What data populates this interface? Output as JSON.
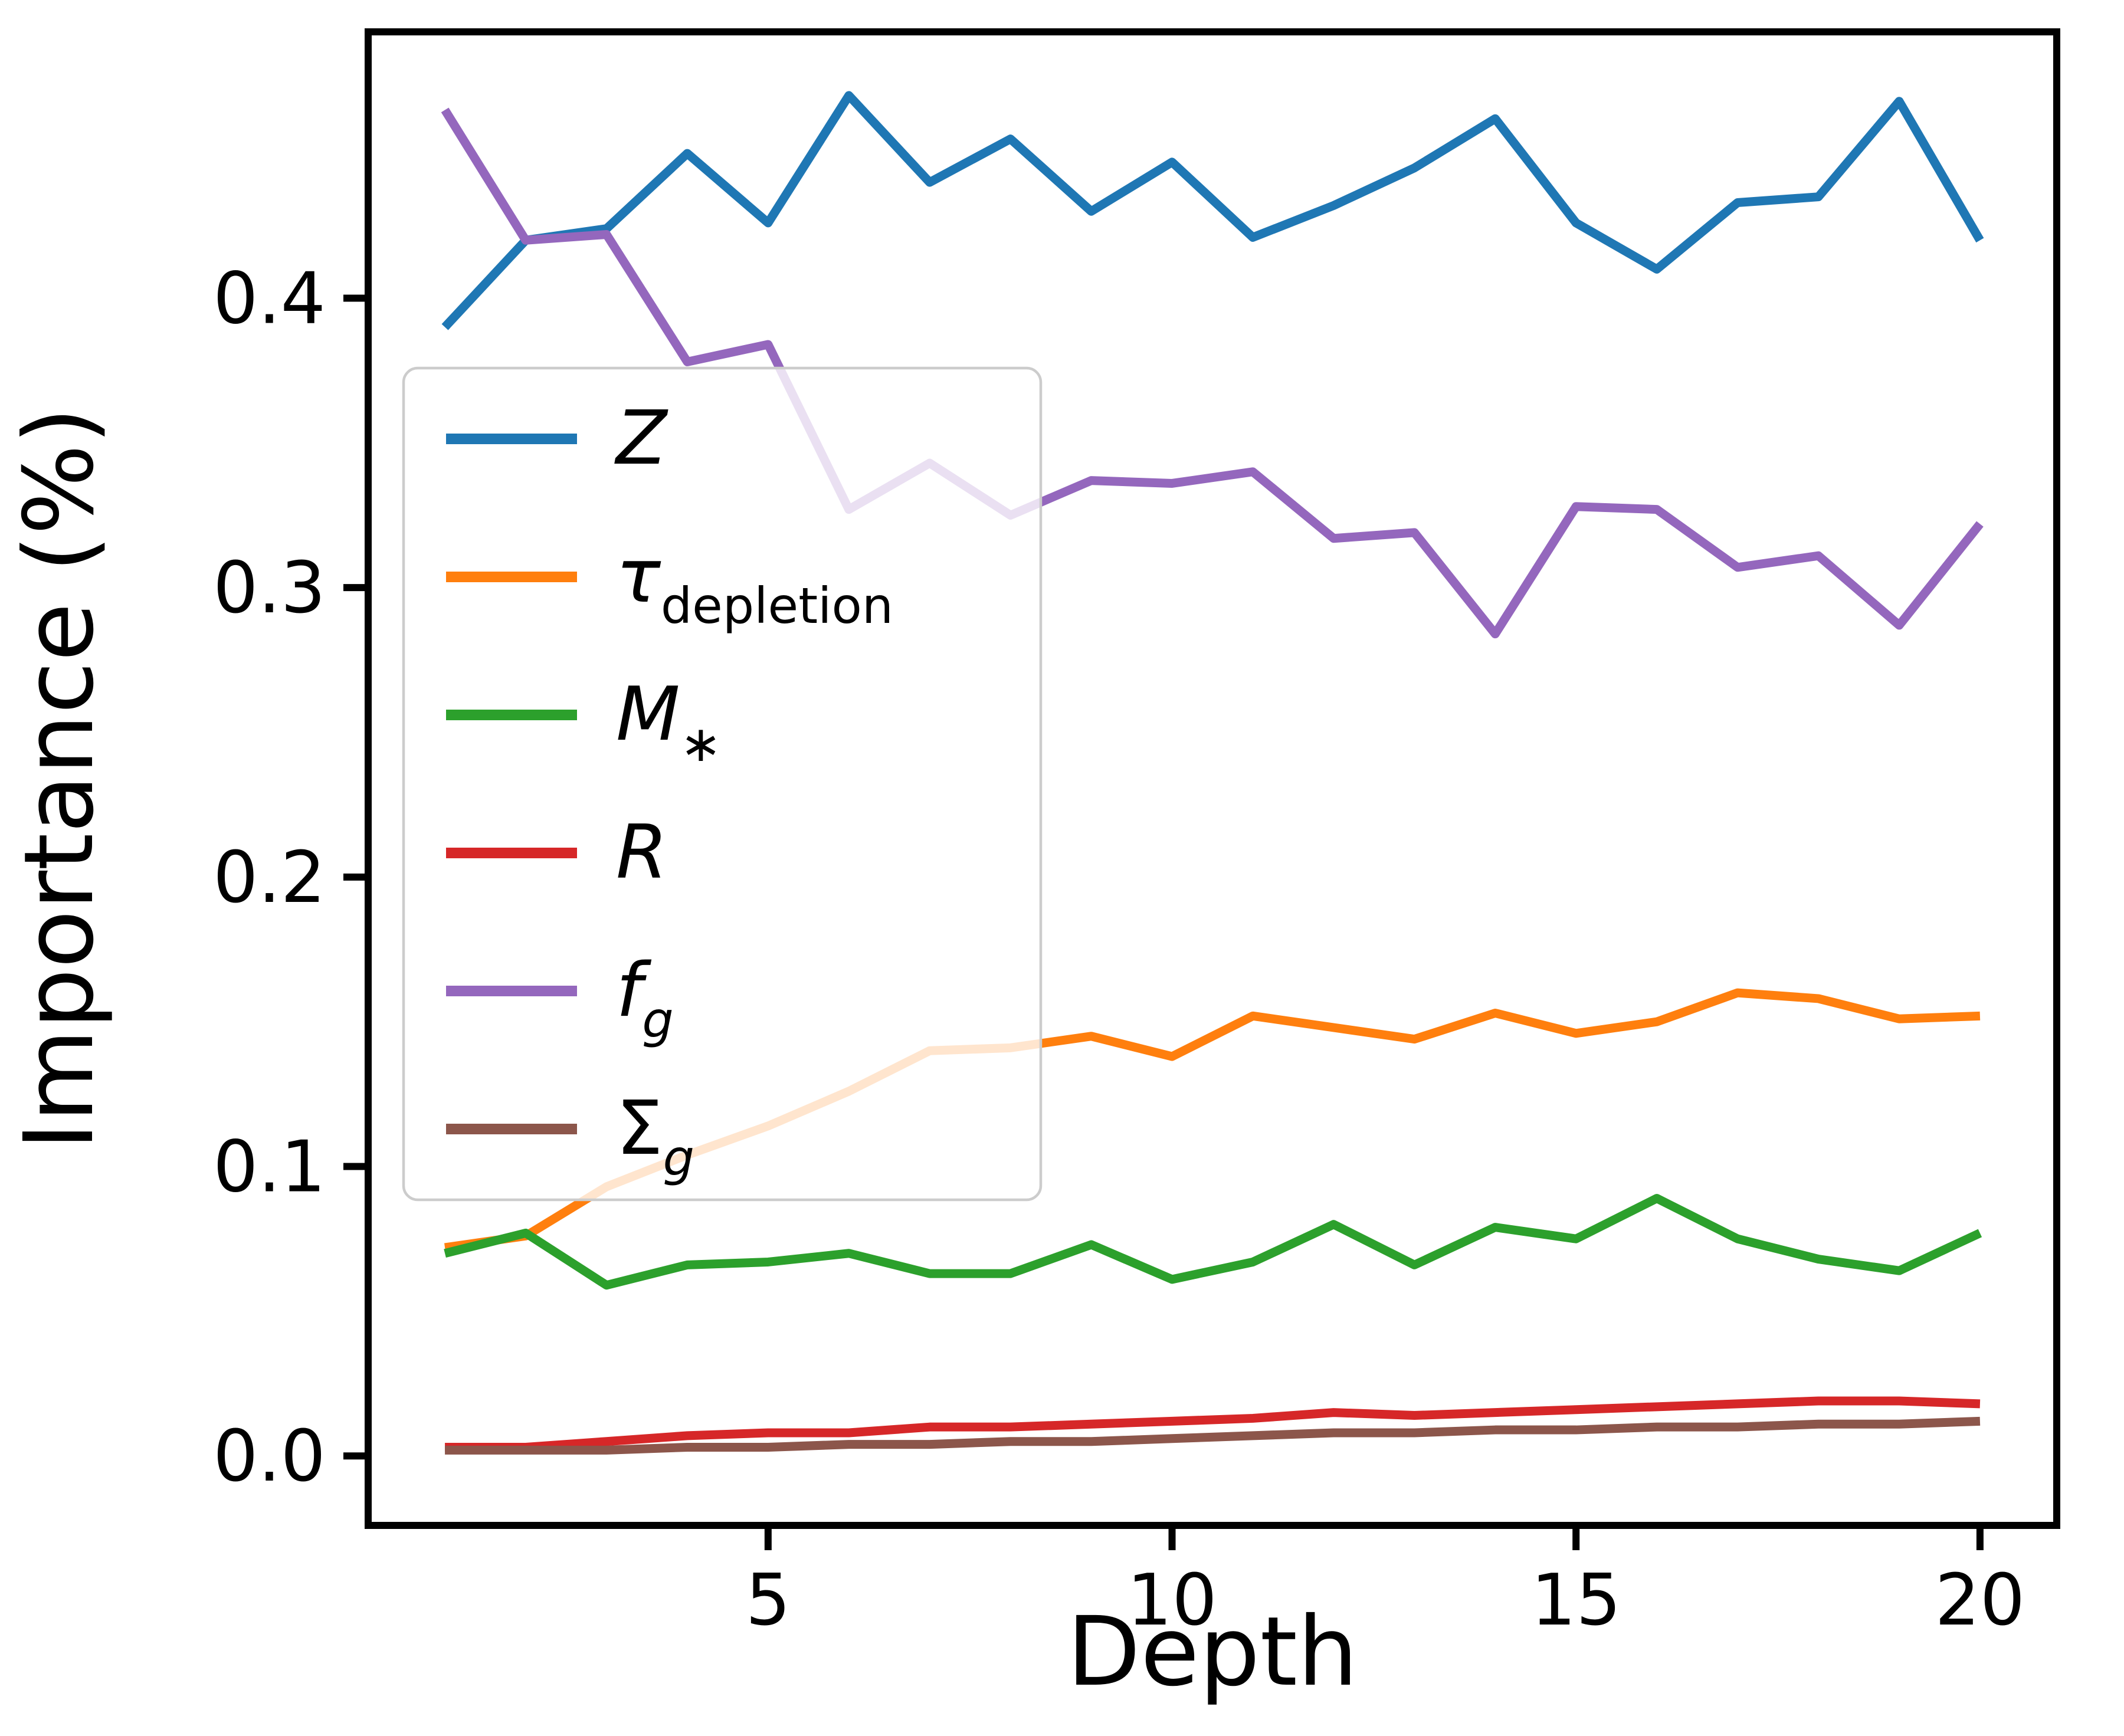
{
  "figure": {
    "background": "#ffffff",
    "axis_color": "#000000"
  },
  "chart_data": {
    "type": "line",
    "title": "",
    "xlabel": "Depth",
    "ylabel": "Importance (%)",
    "grid": false,
    "legend_position": "upper-left-inside",
    "xlim": [
      0.05,
      20.95
    ],
    "ylim": [
      -0.024,
      0.492
    ],
    "xticks": [
      5,
      10,
      15,
      20
    ],
    "xtick_labels": [
      "5",
      "10",
      "15",
      "20"
    ],
    "yticks": [
      0.0,
      0.1,
      0.2,
      0.3,
      0.4
    ],
    "ytick_labels": [
      "0.0",
      "0.1",
      "0.2",
      "0.3",
      "0.4"
    ],
    "x": [
      1,
      2,
      3,
      4,
      5,
      6,
      7,
      8,
      9,
      10,
      11,
      12,
      13,
      14,
      15,
      16,
      17,
      18,
      19,
      20
    ],
    "series": [
      {
        "name": "Z",
        "legend_main": "Z",
        "legend_sub": "",
        "color": "#1f77b4",
        "values": [
          0.39,
          0.42,
          0.424,
          0.45,
          0.426,
          0.47,
          0.44,
          0.455,
          0.43,
          0.447,
          0.421,
          0.432,
          0.445,
          0.462,
          0.426,
          0.41,
          0.433,
          0.435,
          0.468,
          0.42
        ]
      },
      {
        "name": "tau_depletion",
        "legend_main": "τ",
        "legend_sub": "depletion",
        "color": "#ff7f0e",
        "values": [
          0.072,
          0.076,
          0.093,
          0.104,
          0.114,
          0.126,
          0.14,
          0.141,
          0.145,
          0.138,
          0.152,
          0.148,
          0.144,
          0.153,
          0.146,
          0.15,
          0.16,
          0.158,
          0.151,
          0.152
        ]
      },
      {
        "name": "M_star",
        "legend_main": "M",
        "legend_sub": "∗",
        "color": "#2ca02c",
        "values": [
          0.07,
          0.077,
          0.059,
          0.066,
          0.067,
          0.07,
          0.063,
          0.063,
          0.073,
          0.061,
          0.067,
          0.08,
          0.066,
          0.079,
          0.075,
          0.089,
          0.075,
          0.068,
          0.064,
          0.077
        ]
      },
      {
        "name": "R",
        "legend_main": "R",
        "legend_sub": "",
        "color": "#d62728",
        "values": [
          0.003,
          0.003,
          0.005,
          0.007,
          0.008,
          0.008,
          0.01,
          0.01,
          0.011,
          0.012,
          0.013,
          0.015,
          0.014,
          0.015,
          0.016,
          0.017,
          0.018,
          0.019,
          0.019,
          0.018
        ]
      },
      {
        "name": "f_g",
        "legend_main": "f",
        "legend_sub": "g",
        "color": "#9467bd",
        "values": [
          0.465,
          0.42,
          0.422,
          0.378,
          0.384,
          0.327,
          0.343,
          0.325,
          0.337,
          0.336,
          0.34,
          0.317,
          0.319,
          0.284,
          0.328,
          0.327,
          0.307,
          0.311,
          0.287,
          0.322
        ]
      },
      {
        "name": "Sigma_g",
        "legend_main": "Σ",
        "legend_sub": "g",
        "color": "#8c564b",
        "values": [
          0.002,
          0.002,
          0.002,
          0.003,
          0.003,
          0.004,
          0.004,
          0.005,
          0.005,
          0.006,
          0.007,
          0.008,
          0.008,
          0.009,
          0.009,
          0.01,
          0.01,
          0.011,
          0.011,
          0.012
        ]
      }
    ]
  }
}
